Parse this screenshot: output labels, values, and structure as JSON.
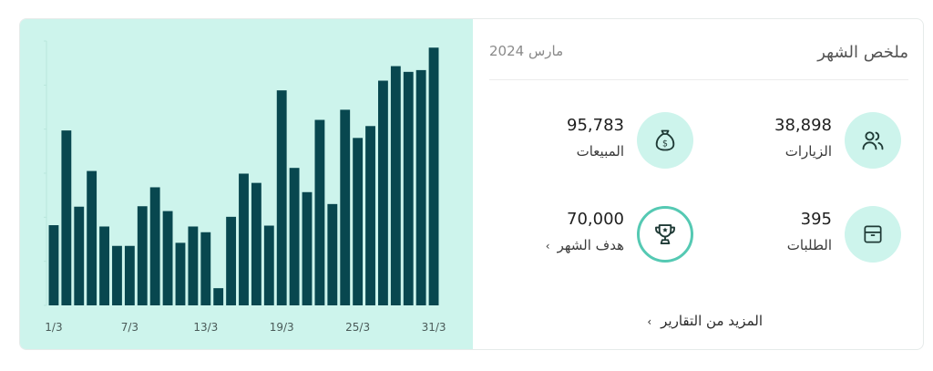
{
  "chart_data": {
    "type": "bar",
    "categories": [
      "1/3",
      "2/3",
      "3/3",
      "4/3",
      "5/3",
      "6/3",
      "7/3",
      "8/3",
      "9/3",
      "10/3",
      "11/3",
      "12/3",
      "13/3",
      "14/3",
      "15/3",
      "16/3",
      "17/3",
      "18/3",
      "19/3",
      "20/3",
      "21/3",
      "22/3",
      "23/3",
      "24/3",
      "25/3",
      "26/3",
      "27/3",
      "28/3",
      "29/3",
      "30/3",
      "31/3"
    ],
    "values": [
      1820,
      3970,
      2240,
      3050,
      1790,
      1350,
      1350,
      2250,
      2680,
      2140,
      1420,
      1790,
      1660,
      390,
      2010,
      2990,
      2780,
      1810,
      4880,
      3120,
      2570,
      4210,
      2300,
      4440,
      3800,
      4070,
      5100,
      5430,
      5300,
      5340,
      5850
    ],
    "x_tick_labels": [
      "1/3",
      "7/3",
      "13/3",
      "19/3",
      "25/3",
      "31/3"
    ],
    "ylim": [
      0,
      6000
    ],
    "bar_color": "#08474f",
    "background": "#cdf4ec"
  },
  "summary": {
    "title": "ملخص الشهر",
    "date": "مارس 2024",
    "stats": {
      "visits": {
        "value": "38,898",
        "label": "الزيارات",
        "icon": "users-icon"
      },
      "sales": {
        "value": "95,783",
        "label": "المبيعات",
        "icon": "money-bag-icon"
      },
      "orders": {
        "value": "395",
        "label": "الطلبات",
        "icon": "box-icon"
      },
      "goal": {
        "value": "70,000",
        "label": "هدف الشهر",
        "chevron": "›",
        "icon": "trophy-icon"
      }
    },
    "more_link": "المزيد من التقارير",
    "more_chevron": "›"
  },
  "colors": {
    "accent_bg": "#cdf4ec",
    "accent_ring": "#55c9b3",
    "icon_stroke": "#1f3a36"
  }
}
